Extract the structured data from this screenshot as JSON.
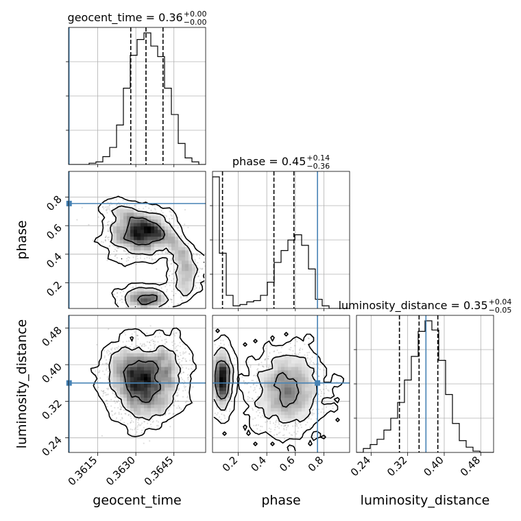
{
  "chart_data": {
    "type": "corner",
    "parameters": [
      "geocent_time",
      "phase",
      "luminosity_distance"
    ],
    "truth_color": "#4682b4",
    "truths": {
      "geocent_time": 0.36037,
      "phase": 0.755,
      "luminosity_distance": 0.36
    },
    "titles": [
      {
        "param": "geocent_time",
        "text": "geocent_time = 0.36",
        "sup": "+0.00",
        "sub": "−0.00"
      },
      {
        "param": "phase",
        "text": "phase = 0.45",
        "sup": "+0.14",
        "sub": "−0.36"
      },
      {
        "param": "luminosity_distance",
        "text": "luminosity_distance = 0.35",
        "sup": "+0.04",
        "sub": "−0.05"
      }
    ],
    "axes": {
      "geocent_time": {
        "label": "geocent_time",
        "range": [
          0.36035,
          0.36575
        ],
        "ticks": [
          {
            "v": 0.3615,
            "label": "0.3615"
          },
          {
            "v": 0.363,
            "label": "0.3630"
          },
          {
            "v": 0.3645,
            "label": "0.3645"
          }
        ]
      },
      "phase": {
        "label": "phase",
        "range": [
          0.02,
          0.98
        ],
        "ticks": [
          {
            "v": 0.2,
            "label": "0.2"
          },
          {
            "v": 0.4,
            "label": "0.4"
          },
          {
            "v": 0.6,
            "label": "0.6"
          },
          {
            "v": 0.8,
            "label": "0.8"
          }
        ]
      },
      "luminosity_distance": {
        "label": "luminosity_distance",
        "range": [
          0.208,
          0.508
        ],
        "ticks": [
          {
            "v": 0.24,
            "label": "0.24"
          },
          {
            "v": 0.32,
            "label": "0.32"
          },
          {
            "v": 0.4,
            "label": "0.40"
          },
          {
            "v": 0.48,
            "label": "0.48"
          }
        ]
      }
    },
    "histograms": {
      "geocent_time": {
        "edges": [
          0.36035,
          0.36062,
          0.36089,
          0.36116,
          0.36143,
          0.3617,
          0.36197,
          0.36224,
          0.36251,
          0.36278,
          0.36305,
          0.36332,
          0.36359,
          0.36386,
          0.36413,
          0.3644,
          0.36467,
          0.36494,
          0.36521,
          0.36548,
          0.36575
        ],
        "counts": [
          0.0,
          0.0,
          0.0,
          0.01,
          0.02,
          0.06,
          0.13,
          0.3,
          0.58,
          0.83,
          0.95,
          1.0,
          0.9,
          0.82,
          0.58,
          0.38,
          0.16,
          0.05,
          0.02,
          0.0
        ],
        "quantiles": [
          0.3628,
          0.3634,
          0.36407
        ]
      },
      "phase": {
        "edges": [
          0.02,
          0.068,
          0.116,
          0.164,
          0.212,
          0.26,
          0.308,
          0.356,
          0.404,
          0.452,
          0.5,
          0.548,
          0.596,
          0.644,
          0.692,
          0.74,
          0.788,
          0.836,
          0.884,
          0.932,
          0.98
        ],
        "counts": [
          1.0,
          0.42,
          0.1,
          0.02,
          0.03,
          0.05,
          0.06,
          0.1,
          0.2,
          0.35,
          0.44,
          0.52,
          0.56,
          0.48,
          0.3,
          0.07,
          0.02,
          0.0,
          0.0,
          0.0
        ],
        "quantiles": [
          0.09,
          0.45,
          0.59
        ]
      },
      "luminosity_distance": {
        "edges": [
          0.208,
          0.223,
          0.238,
          0.253,
          0.268,
          0.283,
          0.298,
          0.313,
          0.328,
          0.343,
          0.358,
          0.373,
          0.388,
          0.403,
          0.418,
          0.433,
          0.448,
          0.463,
          0.478,
          0.493,
          0.508
        ],
        "counts": [
          0.0,
          0.03,
          0.06,
          0.1,
          0.17,
          0.26,
          0.38,
          0.55,
          0.73,
          0.92,
          1.0,
          0.93,
          0.7,
          0.44,
          0.22,
          0.09,
          0.04,
          0.01,
          0.0,
          0.0
        ],
        "quantiles": [
          0.302,
          0.345,
          0.386
        ]
      }
    }
  }
}
